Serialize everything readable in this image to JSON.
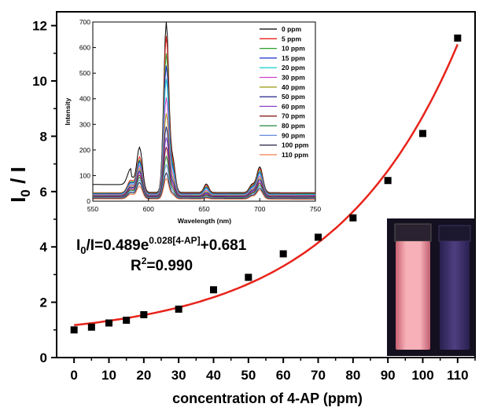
{
  "chart_data": [
    {
      "type": "scatter",
      "xlabel": "concentration of  4-AP (ppm)",
      "ylabel_main": "I",
      "ylabel_sub": "0",
      "ylabel_rest": " / I",
      "xlim": [
        -5,
        115
      ],
      "ylim": [
        0,
        12.5
      ],
      "xticks": [
        0,
        10,
        20,
        30,
        40,
        50,
        60,
        70,
        80,
        90,
        100,
        110
      ],
      "yticks": [
        0,
        2,
        4,
        6,
        8,
        10,
        12
      ],
      "points": {
        "x": [
          0,
          5,
          10,
          15,
          20,
          30,
          40,
          50,
          60,
          70,
          80,
          90,
          100,
          110
        ],
        "y": [
          1.0,
          1.1,
          1.25,
          1.35,
          1.55,
          1.75,
          2.45,
          2.9,
          3.75,
          4.35,
          5.05,
          6.4,
          8.1,
          11.55
        ]
      },
      "fit": {
        "a": 0.489,
        "b": 0.028,
        "c": 0.681,
        "color": "#e8231a"
      },
      "equation": {
        "lhs": "I",
        "lhs_sub": "0",
        "lhs_rest": "/I=0.489e",
        "exponent": "0.028[4-AP]",
        "rhs": "+0.681",
        "r2_prefix": "R",
        "r2_sup": "2",
        "r2_rest": "=0.990"
      }
    },
    {
      "type": "line",
      "xlabel": "Wavelength (nm)",
      "ylabel": "Intensity",
      "xlim": [
        550,
        750
      ],
      "ylim": [
        0,
        700
      ],
      "xticks": [
        550,
        600,
        650,
        700,
        750
      ],
      "yticks": [
        0,
        100,
        200,
        300,
        400,
        500,
        600,
        700
      ],
      "peaks_nm": [
        592,
        616,
        700
      ],
      "series": [
        {
          "name": "0 ppm",
          "color": "#000000",
          "peaks": [
            175,
            665,
            100
          ]
        },
        {
          "name": "5 ppm",
          "color": "#e8231a",
          "peaks": [
            140,
            612,
            95
          ]
        },
        {
          "name": "10 ppm",
          "color": "#2aa02a",
          "peaks": [
            130,
            545,
            90
          ]
        },
        {
          "name": "15 ppm",
          "color": "#1a2fd0",
          "peaks": [
            125,
            500,
            85
          ]
        },
        {
          "name": "20 ppm",
          "color": "#2bd0d0",
          "peaks": [
            118,
            450,
            80
          ]
        },
        {
          "name": "30 ppm",
          "color": "#d040c8",
          "peaks": [
            112,
            380,
            75
          ]
        },
        {
          "name": "40 ppm",
          "color": "#a0a020",
          "peaks": [
            105,
            320,
            70
          ]
        },
        {
          "name": "50 ppm",
          "color": "#20208a",
          "peaks": [
            98,
            270,
            65
          ]
        },
        {
          "name": "60 ppm",
          "color": "#8a40c8",
          "peaks": [
            92,
            230,
            60
          ]
        },
        {
          "name": "70 ppm",
          "color": "#8a2020",
          "peaks": [
            85,
            195,
            55
          ]
        },
        {
          "name": "80 ppm",
          "color": "#208a40",
          "peaks": [
            78,
            160,
            50
          ]
        },
        {
          "name": "90 ppm",
          "color": "#7090e0",
          "peaks": [
            70,
            130,
            45
          ]
        },
        {
          "name": "100 ppm",
          "color": "#202040",
          "peaks": [
            62,
            100,
            40
          ]
        },
        {
          "name": "110 ppm",
          "color": "#f08050",
          "peaks": [
            50,
            80,
            35
          ]
        }
      ]
    }
  ],
  "colors": {
    "photo_bg": "#141020",
    "vial_left": "#f2a0a8",
    "vial_right": "#4a3a78"
  }
}
